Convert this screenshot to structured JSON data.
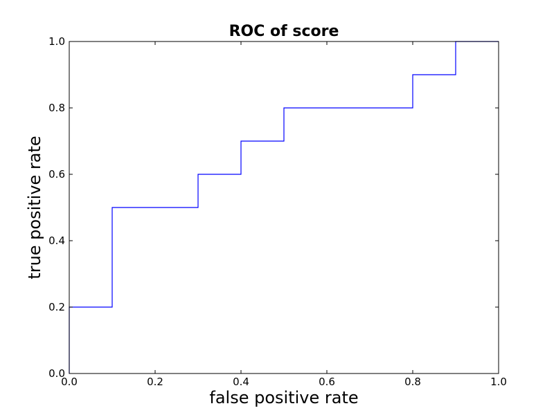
{
  "chart_data": {
    "type": "line",
    "title": "ROC of score",
    "xlabel": "false positive rate",
    "ylabel": "true positive rate",
    "xlim": [
      0.0,
      1.0
    ],
    "ylim": [
      0.0,
      1.0
    ],
    "xticks": [
      "0.0",
      "0.2",
      "0.4",
      "0.6",
      "0.8",
      "1.0"
    ],
    "yticks": [
      "0.0",
      "0.2",
      "0.4",
      "0.6",
      "0.8",
      "1.0"
    ],
    "grid": false,
    "series": [
      {
        "color": "#0000ff",
        "x": [
          0.0,
          0.0,
          0.1,
          0.1,
          0.3,
          0.3,
          0.4,
          0.4,
          0.5,
          0.5,
          0.8,
          0.8,
          0.9,
          0.9,
          1.0
        ],
        "y": [
          0.0,
          0.2,
          0.2,
          0.5,
          0.5,
          0.6,
          0.6,
          0.7,
          0.7,
          0.8,
          0.8,
          0.9,
          0.9,
          1.0,
          1.0
        ]
      }
    ]
  }
}
